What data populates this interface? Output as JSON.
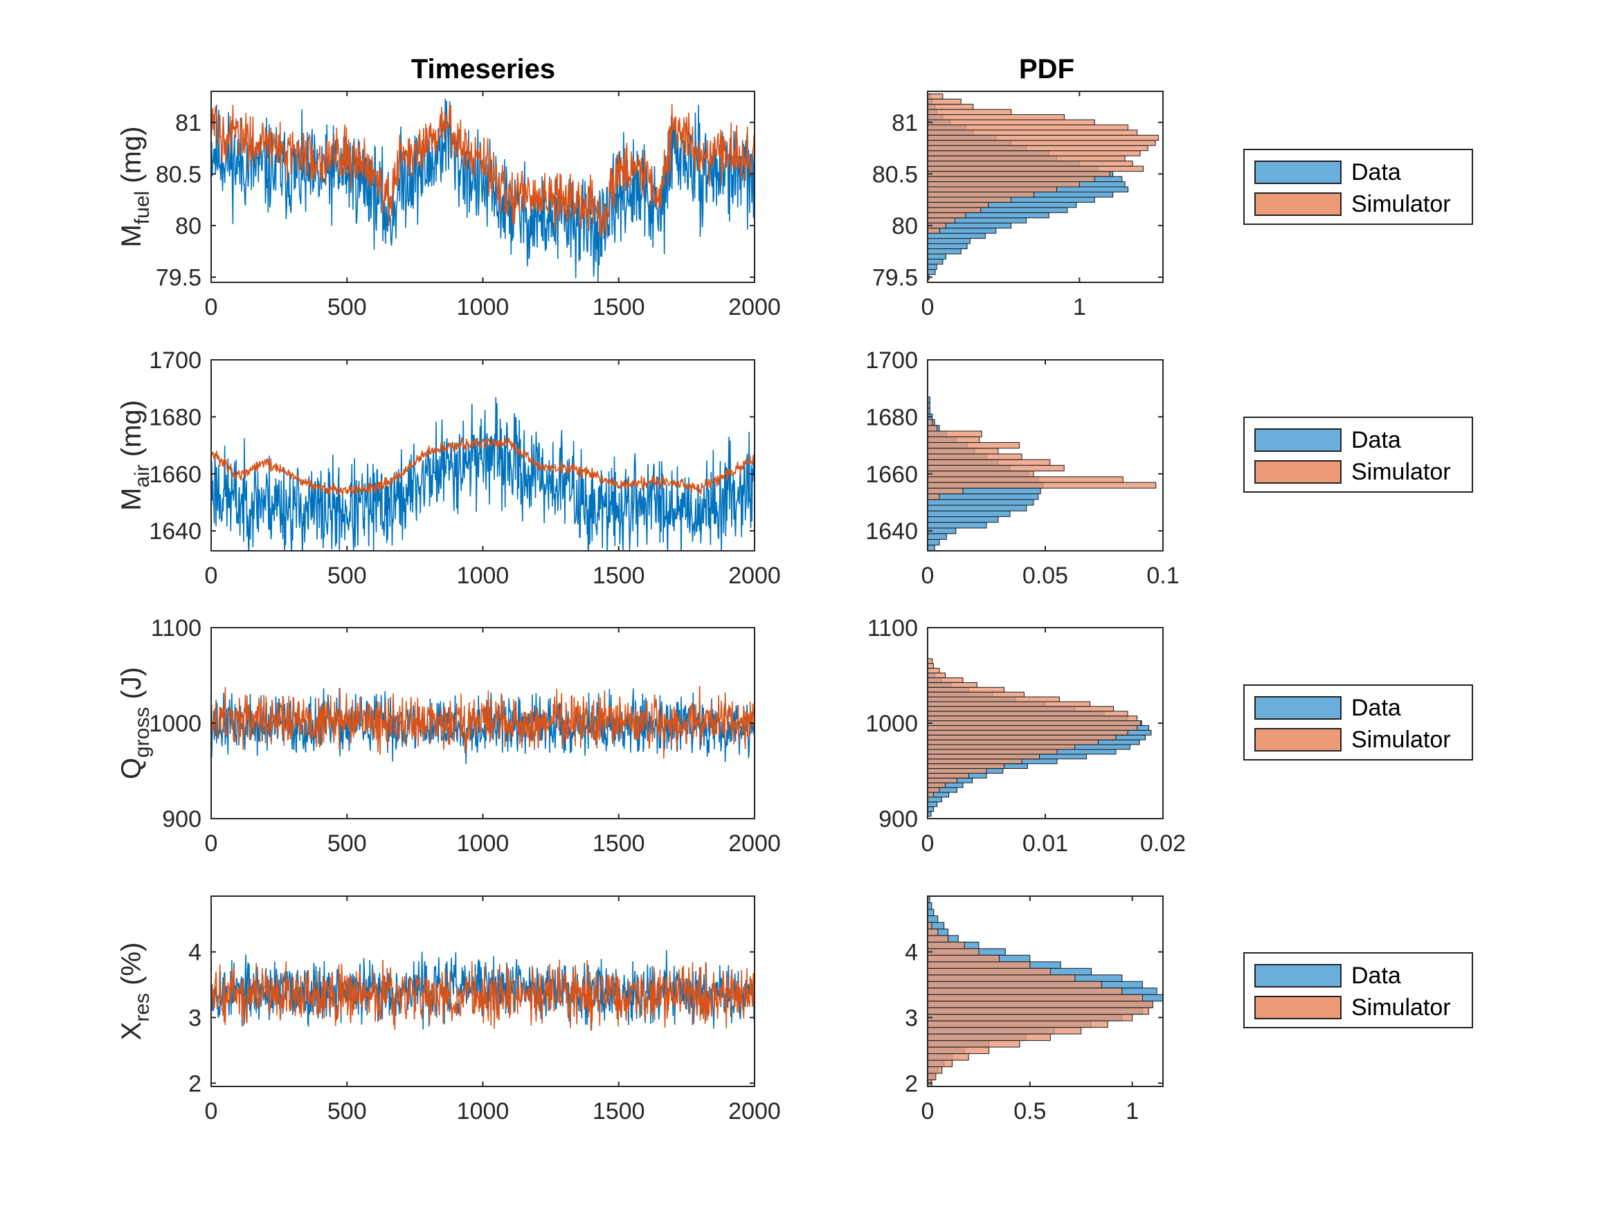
{
  "headers": {
    "timeseries": "Timeseries",
    "pdf": "PDF"
  },
  "colors": {
    "data": "#0072bd",
    "simulator": "#d95319",
    "data_fill": "#6aaedc",
    "sim_fill": "#eb9a78",
    "overlap_fill": "#a6725f"
  },
  "legend": {
    "data_label": "Data",
    "sim_label": "Simulator"
  },
  "chart_data": [
    {
      "id": "mfuel",
      "ylabel_main": "M",
      "ylabel_sub": "fuel",
      "ylabel_unit": "(mg)",
      "ts": {
        "type": "line",
        "xlim": [
          0,
          2000
        ],
        "ylim": [
          79.45,
          81.3
        ],
        "xticks": [
          0,
          500,
          1000,
          1500,
          2000
        ],
        "yticks": [
          79.5,
          80,
          80.5,
          81
        ],
        "x": [
          0,
          100,
          200,
          300,
          400,
          500,
          600,
          660,
          700,
          800,
          870,
          900,
          1000,
          1100,
          1200,
          1300,
          1400,
          1450,
          1500,
          1600,
          1650,
          1700,
          1800,
          1900,
          2000
        ],
        "series": [
          {
            "name": "Data",
            "values": [
              80.75,
              80.6,
              80.55,
              80.5,
              80.45,
              80.55,
              80.35,
              80.05,
              80.45,
              80.55,
              80.9,
              80.6,
              80.4,
              80.15,
              80.05,
              80.05,
              80.0,
              79.9,
              80.35,
              80.3,
              80.05,
              80.75,
              80.5,
              80.55,
              80.45
            ]
          },
          {
            "name": "Simulator",
            "values": [
              80.95,
              80.85,
              80.8,
              80.7,
              80.65,
              80.7,
              80.55,
              80.25,
              80.65,
              80.75,
              81.05,
              80.8,
              80.6,
              80.3,
              80.25,
              80.25,
              80.2,
              80.1,
              80.55,
              80.55,
              80.25,
              80.95,
              80.7,
              80.7,
              80.65
            ]
          }
        ],
        "noise": [
          0.45,
          0.25
        ],
        "seed": 11
      },
      "pdf": {
        "type": "bar",
        "orientation": "horizontal",
        "xlim": [
          0,
          1.55
        ],
        "ylim": [
          79.45,
          81.3
        ],
        "xticks": [
          0,
          1
        ],
        "yticks": [
          79.5,
          80,
          80.5,
          81
        ],
        "bin_width": 0.05,
        "data_bins": [
          79.5,
          79.55,
          79.6,
          79.65,
          79.7,
          79.75,
          79.8,
          79.85,
          79.9,
          79.95,
          80.0,
          80.05,
          80.1,
          80.15,
          80.2,
          80.25,
          80.3,
          80.35,
          80.4,
          80.45,
          80.5,
          80.55,
          80.6,
          80.65,
          80.7,
          80.75,
          80.8,
          80.85,
          80.9,
          80.95,
          81.0,
          81.05,
          81.1,
          81.15,
          81.2,
          81.25
        ],
        "data_values": [
          0.01,
          0.05,
          0.06,
          0.1,
          0.12,
          0.22,
          0.26,
          0.28,
          0.38,
          0.45,
          0.55,
          0.65,
          0.8,
          0.92,
          0.98,
          1.1,
          1.22,
          1.32,
          1.3,
          1.28,
          1.22,
          1.12,
          1.0,
          0.85,
          0.8,
          0.65,
          0.55,
          0.45,
          0.3,
          0.25,
          0.15,
          0.1,
          0.06,
          0.05,
          0.03,
          0.02
        ],
        "sim_bins": [
          79.95,
          80.0,
          80.05,
          80.1,
          80.15,
          80.2,
          80.25,
          80.3,
          80.35,
          80.4,
          80.45,
          80.5,
          80.55,
          80.6,
          80.65,
          80.7,
          80.75,
          80.8,
          80.85,
          80.9,
          80.95,
          81.0,
          81.05,
          81.1,
          81.15,
          81.2,
          81.25
        ],
        "sim_values": [
          0.08,
          0.12,
          0.18,
          0.25,
          0.35,
          0.4,
          0.55,
          0.7,
          0.85,
          1.0,
          1.1,
          1.2,
          1.42,
          1.35,
          1.3,
          1.4,
          1.45,
          1.5,
          1.52,
          1.38,
          1.32,
          1.1,
          0.9,
          0.55,
          0.3,
          0.22,
          0.1
        ]
      }
    },
    {
      "id": "mair",
      "ylabel_main": "M",
      "ylabel_sub": "air",
      "ylabel_unit": "(mg)",
      "ts": {
        "type": "line",
        "xlim": [
          0,
          2000
        ],
        "ylim": [
          1633,
          1700
        ],
        "xticks": [
          0,
          500,
          1000,
          1500,
          2000
        ],
        "yticks": [
          1640,
          1660,
          1680,
          1700
        ],
        "x": [
          0,
          100,
          200,
          300,
          400,
          500,
          600,
          700,
          800,
          900,
          1000,
          1100,
          1200,
          1300,
          1400,
          1500,
          1600,
          1700,
          1800,
          1900,
          2000
        ],
        "series": [
          {
            "name": "Data",
            "values": [
              1656,
              1650,
              1651,
              1648,
              1647,
              1647,
              1648,
              1651,
              1660,
              1664,
              1668,
              1664,
              1659,
              1657,
              1647,
              1648,
              1651,
              1650,
              1647,
              1652,
              1658
            ]
          },
          {
            "name": "Simulator",
            "values": [
              1668,
              1659,
              1664,
              1659,
              1655,
              1654,
              1655,
              1660,
              1668,
              1670,
              1671,
              1671,
              1663,
              1662,
              1660,
              1656,
              1657,
              1657,
              1655,
              1660,
              1665
            ]
          }
        ],
        "noise": [
          16,
          2
        ],
        "seed": 23
      },
      "pdf": {
        "type": "bar",
        "orientation": "horizontal",
        "xlim": [
          0,
          0.1
        ],
        "ylim": [
          1633,
          1700
        ],
        "xticks": [
          0,
          0.05,
          0.1
        ],
        "yticks": [
          1640,
          1660,
          1680,
          1700
        ],
        "bin_width": 2,
        "data_bins": [
          1634,
          1636,
          1638,
          1640,
          1642,
          1644,
          1646,
          1648,
          1650,
          1652,
          1654,
          1656,
          1658,
          1660,
          1662,
          1664,
          1666,
          1668,
          1670,
          1672,
          1674,
          1676,
          1678,
          1680,
          1682,
          1684,
          1686
        ],
        "data_values": [
          0.003,
          0.005,
          0.008,
          0.012,
          0.025,
          0.03,
          0.035,
          0.042,
          0.045,
          0.047,
          0.048,
          0.049,
          0.047,
          0.043,
          0.035,
          0.03,
          0.025,
          0.02,
          0.017,
          0.012,
          0.008,
          0.005,
          0.003,
          0.002,
          0.001,
          0.001,
          0.001
        ],
        "sim_bins": [
          1652,
          1654,
          1656,
          1658,
          1660,
          1662,
          1664,
          1666,
          1668,
          1670,
          1672,
          1674,
          1676,
          1678
        ],
        "sim_values": [
          0.005,
          0.015,
          0.097,
          0.083,
          0.045,
          0.058,
          0.052,
          0.04,
          0.03,
          0.039,
          0.022,
          0.023,
          0.004,
          0.002
        ]
      }
    },
    {
      "id": "qgross",
      "ylabel_main": "Q",
      "ylabel_sub": "gross",
      "ylabel_unit": "(J)",
      "ts": {
        "type": "line",
        "xlim": [
          0,
          2000
        ],
        "ylim": [
          900,
          1100
        ],
        "xticks": [
          0,
          500,
          1000,
          1500,
          2000
        ],
        "yticks": [
          900,
          1000,
          1100
        ],
        "x": [
          0,
          500,
          1000,
          1500,
          2000
        ],
        "series": [
          {
            "name": "Data",
            "values": [
              998,
              998,
              998,
              998,
              998
            ]
          },
          {
            "name": "Simulator",
            "values": [
              1001,
              1001,
              1001,
              1001,
              1001
            ]
          }
        ],
        "noise": [
          30,
          28
        ],
        "seed": 37
      },
      "pdf": {
        "type": "bar",
        "orientation": "horizontal",
        "xlim": [
          0,
          0.02
        ],
        "ylim": [
          900,
          1100
        ],
        "xticks": [
          0,
          0.01,
          0.02
        ],
        "yticks": [
          900,
          1000,
          1100
        ],
        "bin_width": 5,
        "data_bins": [
          905,
          910,
          915,
          920,
          925,
          930,
          935,
          940,
          945,
          950,
          955,
          960,
          965,
          970,
          975,
          980,
          985,
          990,
          995,
          1000,
          1005,
          1010,
          1015,
          1020,
          1025,
          1030,
          1035,
          1040,
          1045,
          1050
        ],
        "data_values": [
          0.0003,
          0.0005,
          0.0008,
          0.0012,
          0.0018,
          0.0025,
          0.003,
          0.0038,
          0.005,
          0.0064,
          0.0085,
          0.011,
          0.0135,
          0.016,
          0.0172,
          0.018,
          0.0185,
          0.019,
          0.0188,
          0.0182,
          0.017,
          0.015,
          0.0125,
          0.01,
          0.0075,
          0.0055,
          0.0035,
          0.002,
          0.0012,
          0.0006
        ],
        "sim_bins": [
          925,
          930,
          935,
          940,
          945,
          950,
          955,
          960,
          965,
          970,
          975,
          980,
          985,
          990,
          995,
          1000,
          1005,
          1010,
          1015,
          1020,
          1025,
          1030,
          1035,
          1040,
          1045,
          1050,
          1055,
          1060,
          1065
        ],
        "sim_values": [
          0.0005,
          0.001,
          0.0015,
          0.0025,
          0.0035,
          0.005,
          0.0065,
          0.008,
          0.0095,
          0.011,
          0.0125,
          0.0145,
          0.016,
          0.017,
          0.0178,
          0.0181,
          0.0178,
          0.017,
          0.0158,
          0.0138,
          0.0112,
          0.0082,
          0.0065,
          0.0042,
          0.003,
          0.0015,
          0.001,
          0.0005,
          0.0004
        ]
      }
    },
    {
      "id": "xres",
      "ylabel_main": "X",
      "ylabel_sub": "res",
      "ylabel_unit": "(%)",
      "ts": {
        "type": "line",
        "xlim": [
          0,
          2000
        ],
        "ylim": [
          1.95,
          4.85
        ],
        "xticks": [
          0,
          500,
          1000,
          1500,
          2000
        ],
        "yticks": [
          2,
          3,
          4
        ],
        "x": [
          0,
          500,
          1000,
          1500,
          2000
        ],
        "series": [
          {
            "name": "Data",
            "values": [
              3.4,
              3.4,
              3.45,
              3.4,
              3.4
            ]
          },
          {
            "name": "Simulator",
            "values": [
              3.35,
              3.35,
              3.35,
              3.35,
              3.35
            ]
          }
        ],
        "noise": [
          0.45,
          0.42
        ],
        "seed": 53
      },
      "pdf": {
        "type": "bar",
        "orientation": "horizontal",
        "xlim": [
          0,
          1.15
        ],
        "ylim": [
          1.95,
          4.85
        ],
        "xticks": [
          0,
          0.5,
          1
        ],
        "yticks": [
          2,
          3,
          4
        ],
        "bin_width": 0.1,
        "data_bins": [
          2.0,
          2.1,
          2.2,
          2.3,
          2.4,
          2.5,
          2.6,
          2.7,
          2.8,
          2.9,
          3.0,
          3.1,
          3.2,
          3.3,
          3.4,
          3.5,
          3.6,
          3.7,
          3.8,
          3.9,
          4.0,
          4.1,
          4.2,
          4.3,
          4.4,
          4.5,
          4.6,
          4.7,
          4.8
        ],
        "data_values": [
          0.02,
          0.03,
          0.05,
          0.08,
          0.12,
          0.18,
          0.3,
          0.48,
          0.62,
          0.8,
          0.95,
          1.05,
          1.1,
          1.15,
          1.12,
          1.05,
          0.95,
          0.8,
          0.65,
          0.5,
          0.38,
          0.25,
          0.15,
          0.1,
          0.08,
          0.05,
          0.03,
          0.02,
          0.01
        ],
        "sim_bins": [
          2.0,
          2.1,
          2.2,
          2.3,
          2.4,
          2.5,
          2.6,
          2.7,
          2.8,
          2.9,
          3.0,
          3.1,
          3.2,
          3.3,
          3.4,
          3.5,
          3.6,
          3.7,
          3.8,
          3.9,
          4.0,
          4.1,
          4.2,
          4.3,
          4.4
        ],
        "sim_values": [
          0.02,
          0.04,
          0.07,
          0.12,
          0.2,
          0.3,
          0.45,
          0.6,
          0.75,
          0.88,
          1.0,
          1.08,
          1.1,
          1.05,
          0.95,
          0.85,
          0.72,
          0.6,
          0.5,
          0.35,
          0.25,
          0.18,
          0.1,
          0.05,
          0.02
        ]
      }
    }
  ]
}
